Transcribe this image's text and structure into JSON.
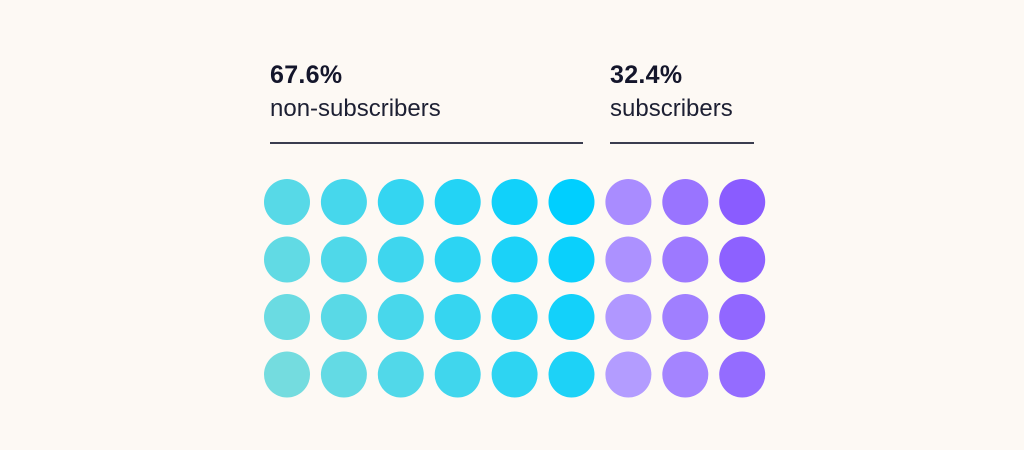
{
  "chart_data": {
    "type": "waffle",
    "rows": 4,
    "columns": 9,
    "series": [
      {
        "name": "non-subscribers",
        "value_label": "67.6%",
        "value": 67.6,
        "dots": 24,
        "color_from": "#74dcdf",
        "color_to": "#00cfff"
      },
      {
        "name": "subscribers",
        "value_label": "32.4%",
        "value": 32.4,
        "dots": 12,
        "color_from": "#b39cff",
        "color_to": "#8a5cff"
      }
    ]
  },
  "background_color": "#fdf9f4"
}
